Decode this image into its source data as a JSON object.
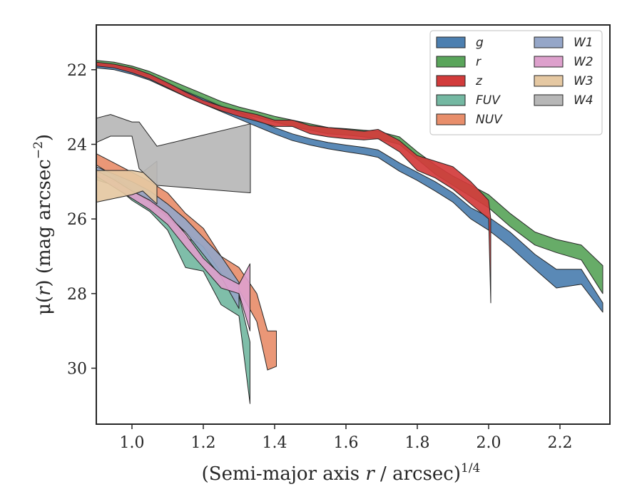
{
  "chart_data": {
    "type": "area",
    "xlabel_main": "(Semi-major axis ",
    "xlabel_var": "r",
    "xlabel_mid": " / arcsec)",
    "xlabel_exp": "1/4",
    "ylabel_mu": "μ(",
    "ylabel_var": "r",
    "ylabel_mid": ") (mag arcsec",
    "ylabel_exp": "−2",
    "ylabel_end": ")",
    "xlim": [
      0.9,
      2.34
    ],
    "ylim": [
      31.5,
      20.8
    ],
    "y_inverted": true,
    "xticks": [
      1.0,
      1.2,
      1.4,
      1.6,
      1.8,
      2.0,
      2.2
    ],
    "xtick_labels": [
      "1.0",
      "1.2",
      "1.4",
      "1.6",
      "1.8",
      "2.0",
      "2.2"
    ],
    "yticks": [
      22,
      24,
      26,
      28,
      30
    ],
    "ytick_labels": [
      "22",
      "24",
      "26",
      "28",
      "30"
    ],
    "grid": false,
    "legend_position": "top-right",
    "legend_columns": 2,
    "series": [
      {
        "name": "g",
        "color": "#4c7fb0",
        "x": [
          0.9,
          0.95,
          1.0,
          1.05,
          1.1,
          1.15,
          1.2,
          1.25,
          1.3,
          1.35,
          1.4,
          1.45,
          1.5,
          1.55,
          1.6,
          1.65,
          1.69,
          1.75,
          1.8,
          1.85,
          1.9,
          1.95,
          2.0,
          2.06,
          2.13,
          2.19,
          2.26,
          2.32
        ],
        "lo": [
          21.85,
          21.9,
          22.0,
          22.15,
          22.35,
          22.55,
          22.75,
          22.95,
          23.15,
          23.35,
          23.55,
          23.72,
          23.85,
          23.95,
          24.02,
          24.08,
          24.15,
          24.5,
          24.75,
          25.0,
          25.3,
          25.7,
          25.95,
          26.35,
          26.95,
          27.35,
          27.35,
          28.25
        ],
        "hi": [
          21.95,
          22.0,
          22.12,
          22.28,
          22.5,
          22.72,
          22.92,
          23.12,
          23.32,
          23.52,
          23.72,
          23.9,
          24.02,
          24.12,
          24.2,
          24.27,
          24.35,
          24.72,
          24.97,
          25.25,
          25.55,
          26.0,
          26.3,
          26.75,
          27.35,
          27.85,
          27.75,
          28.5
        ]
      },
      {
        "name": "r",
        "color": "#5aa55b",
        "x": [
          0.9,
          0.95,
          1.0,
          1.05,
          1.1,
          1.15,
          1.2,
          1.25,
          1.3,
          1.35,
          1.4,
          1.45,
          1.5,
          1.55,
          1.6,
          1.65,
          1.69,
          1.75,
          1.8,
          1.85,
          1.9,
          1.95,
          2.0,
          2.06,
          2.13,
          2.19,
          2.26,
          2.32
        ],
        "lo": [
          21.75,
          21.8,
          21.9,
          22.05,
          22.25,
          22.45,
          22.65,
          22.85,
          23.0,
          23.12,
          23.25,
          23.35,
          23.45,
          23.55,
          23.58,
          23.62,
          23.65,
          23.8,
          24.2,
          24.55,
          24.85,
          25.1,
          25.35,
          25.85,
          26.35,
          26.55,
          26.7,
          27.25
        ],
        "hi": [
          21.85,
          21.9,
          22.02,
          22.18,
          22.38,
          22.58,
          22.78,
          22.98,
          23.15,
          23.28,
          23.4,
          23.52,
          23.62,
          23.72,
          23.75,
          23.8,
          23.85,
          24.0,
          24.4,
          24.8,
          25.1,
          25.4,
          25.7,
          26.2,
          26.7,
          26.9,
          27.1,
          28.0
        ]
      },
      {
        "name": "z",
        "color": "#d23b3b",
        "x": [
          0.9,
          0.95,
          1.0,
          1.05,
          1.1,
          1.15,
          1.2,
          1.25,
          1.3,
          1.35,
          1.4,
          1.45,
          1.5,
          1.55,
          1.6,
          1.65,
          1.69,
          1.75,
          1.8,
          1.85,
          1.9,
          1.95,
          2.0,
          2.006
        ],
        "lo": [
          21.8,
          21.85,
          21.95,
          22.12,
          22.35,
          22.6,
          22.82,
          22.98,
          23.1,
          23.2,
          23.35,
          23.35,
          23.5,
          23.55,
          23.6,
          23.65,
          23.6,
          23.9,
          24.3,
          24.45,
          24.6,
          25.0,
          25.5,
          26.0
        ],
        "hi": [
          21.9,
          21.95,
          22.08,
          22.25,
          22.48,
          22.72,
          22.92,
          23.1,
          23.25,
          23.38,
          23.52,
          23.52,
          23.72,
          23.8,
          23.85,
          23.88,
          23.85,
          24.2,
          24.7,
          24.9,
          25.2,
          25.6,
          26.0,
          28.25
        ]
      },
      {
        "name": "FUV",
        "color": "#74b8a2",
        "x": [
          0.9,
          0.95,
          1.0,
          1.05,
          1.1,
          1.15,
          1.2,
          1.25,
          1.3,
          1.331
        ],
        "lo": [
          24.75,
          24.9,
          25.2,
          25.45,
          25.9,
          26.5,
          26.7,
          27.1,
          28.05,
          29.3
        ],
        "hi": [
          24.95,
          25.1,
          25.5,
          25.8,
          26.3,
          27.3,
          27.4,
          28.3,
          28.6,
          30.95
        ]
      },
      {
        "name": "NUV",
        "color": "#e88e6b",
        "x": [
          0.9,
          0.95,
          1.0,
          1.05,
          1.1,
          1.15,
          1.2,
          1.25,
          1.3,
          1.35,
          1.38,
          1.405
        ],
        "lo": [
          24.25,
          24.5,
          24.75,
          25.0,
          25.3,
          25.85,
          26.25,
          27.0,
          27.3,
          28.0,
          29.0,
          29.0
        ],
        "hi": [
          24.55,
          24.85,
          25.2,
          25.55,
          25.95,
          26.35,
          26.75,
          27.45,
          27.9,
          28.75,
          30.05,
          29.95
        ]
      },
      {
        "name": "W1",
        "color": "#95a6c8",
        "x": [
          0.9,
          0.95,
          1.0,
          1.05,
          1.1,
          1.15,
          1.2,
          1.25,
          1.3
        ],
        "lo": [
          24.6,
          24.8,
          25.0,
          25.25,
          25.6,
          26.0,
          26.5,
          27.0,
          27.7
        ],
        "hi": [
          24.8,
          25.0,
          25.25,
          25.5,
          25.9,
          26.35,
          26.95,
          27.55,
          28.4
        ]
      },
      {
        "name": "W2",
        "color": "#dda0cc",
        "x": [
          0.9,
          0.95,
          1.0,
          1.05,
          1.1,
          1.15,
          1.2,
          1.25,
          1.3,
          1.331
        ],
        "lo": [
          24.7,
          24.95,
          25.25,
          25.5,
          25.85,
          26.4,
          27.05,
          27.5,
          27.75,
          27.2
        ],
        "hi": [
          24.85,
          25.15,
          25.45,
          25.75,
          26.15,
          26.75,
          27.3,
          27.85,
          28.0,
          29.0
        ]
      },
      {
        "name": "W3",
        "color": "#e5c8a2",
        "x": [
          0.9,
          0.95,
          1.0,
          1.03,
          1.07
        ],
        "lo": [
          24.7,
          24.7,
          24.7,
          24.75,
          24.45
        ],
        "hi": [
          25.55,
          25.45,
          25.35,
          25.25,
          25.6
        ]
      },
      {
        "name": "W4",
        "color": "#b7b7b7",
        "x": [
          0.9,
          0.94,
          1.0,
          1.02,
          1.07,
          1.332
        ],
        "lo": [
          23.3,
          23.2,
          23.4,
          23.4,
          24.05,
          23.45
        ],
        "hi": [
          23.95,
          23.78,
          23.78,
          24.65,
          25.1,
          25.3
        ]
      }
    ]
  }
}
